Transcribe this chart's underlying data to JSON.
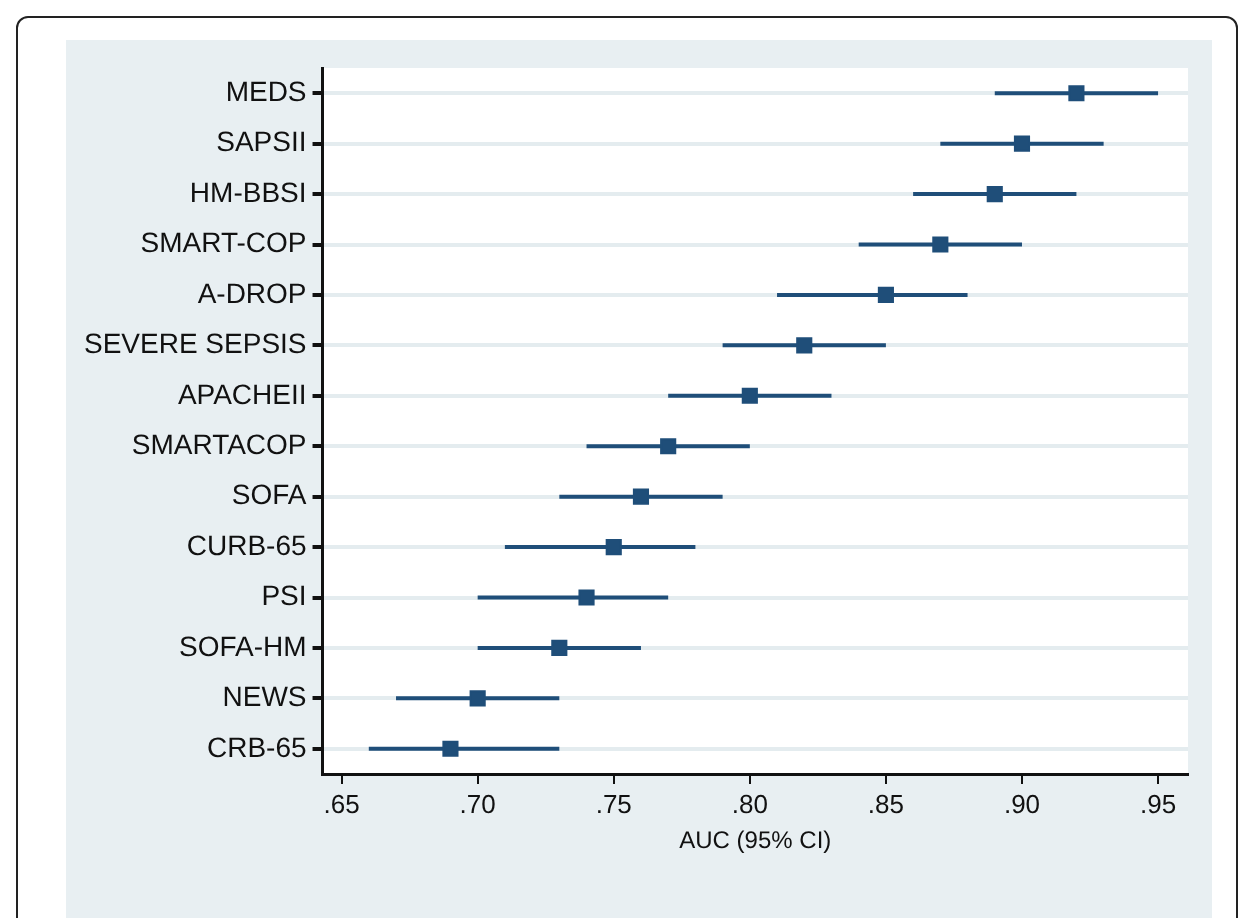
{
  "chart_data": {
    "type": "scatter",
    "orientation": "horizontal",
    "xlabel": "AUC (95% CI)",
    "categories": [
      "MEDS",
      "SAPSII",
      "HM-BBSI",
      "SMART-COP",
      "A-DROP",
      "SEVERE SEPSIS",
      "APACHEII",
      "SMARTACOP",
      "SOFA",
      "CURB-65",
      "PSI",
      "SOFA-HM",
      "NEWS",
      "CRB-65"
    ],
    "values": [
      0.92,
      0.9,
      0.89,
      0.87,
      0.85,
      0.82,
      0.8,
      0.77,
      0.76,
      0.75,
      0.74,
      0.73,
      0.7,
      0.69
    ],
    "errors": [
      [
        0.89,
        0.95
      ],
      [
        0.87,
        0.93
      ],
      [
        0.86,
        0.92
      ],
      [
        0.84,
        0.9
      ],
      [
        0.81,
        0.88
      ],
      [
        0.79,
        0.85
      ],
      [
        0.77,
        0.83
      ],
      [
        0.74,
        0.8
      ],
      [
        0.73,
        0.79
      ],
      [
        0.71,
        0.78
      ],
      [
        0.7,
        0.77
      ],
      [
        0.7,
        0.76
      ],
      [
        0.67,
        0.73
      ],
      [
        0.66,
        0.73
      ]
    ],
    "color": "#1f4e79",
    "marker": "square",
    "grid": "y",
    "xlim": [
      0.643,
      0.961
    ],
    "xticks": [
      {
        "value": 0.65,
        "label": ".65"
      },
      {
        "value": 0.7,
        "label": ".70"
      },
      {
        "value": 0.75,
        "label": ".75"
      },
      {
        "value": 0.8,
        "label": ".80"
      },
      {
        "value": 0.85,
        "label": ".85"
      },
      {
        "value": 0.9,
        "label": ".90"
      },
      {
        "value": 0.95,
        "label": ".95"
      }
    ]
  }
}
